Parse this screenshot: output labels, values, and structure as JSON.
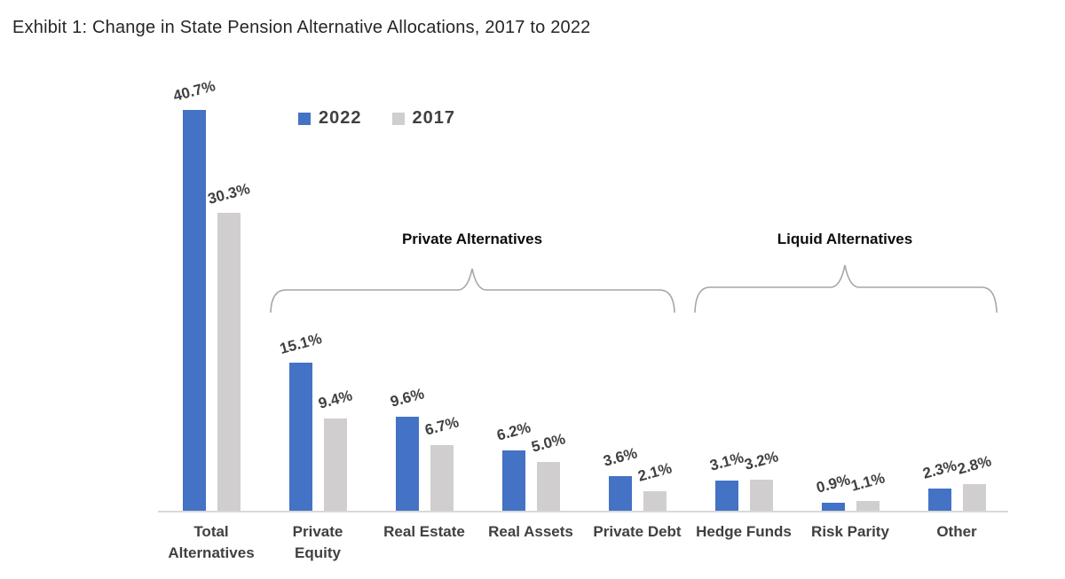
{
  "page": {
    "title": "Exhibit 1: Change in State Pension Alternative Allocations, 2017 to 2022"
  },
  "legend": {
    "items": [
      {
        "label": "2022",
        "color": "#4472C4"
      },
      {
        "label": "2017",
        "color": "#D0CECE"
      }
    ]
  },
  "chart_data": {
    "type": "bar",
    "title": "Exhibit 1: Change in State Pension Alternative Allocations, 2017 to 2022",
    "categories": [
      "Total\nAlternatives",
      "Private\nEquity",
      "Real Estate",
      "Real Assets",
      "Private Debt",
      "Hedge Funds",
      "Risk Parity",
      "Other"
    ],
    "series": [
      {
        "name": "2022",
        "color": "#4472C4",
        "values": [
          40.7,
          15.1,
          9.6,
          6.2,
          3.6,
          3.1,
          0.9,
          2.3
        ],
        "labels": [
          "40.7%",
          "15.1%",
          "9.6%",
          "6.2%",
          "3.6%",
          "3.1%",
          "0.9%",
          "2.3%"
        ]
      },
      {
        "name": "2017",
        "color": "#D0CECE",
        "values": [
          30.3,
          9.4,
          6.7,
          5.0,
          2.1,
          3.2,
          1.1,
          2.8
        ],
        "labels": [
          "30.3%",
          "9.4%",
          "6.7%",
          "5.0%",
          "2.1%",
          "3.2%",
          "1.1%",
          "2.8%"
        ]
      }
    ],
    "groups": [
      {
        "label": "Private Alternatives",
        "span": [
          "Private Equity",
          "Private Debt"
        ]
      },
      {
        "label": "Liquid Alternatives",
        "span": [
          "Hedge Funds",
          "Other"
        ]
      }
    ],
    "ylim": [
      0,
      45
    ],
    "grid": false,
    "legend_position": "top-left-inside",
    "value_label_rotation_deg": -15,
    "axis_line_color": "#D9D9D9",
    "brace_color": "#A6A6A6"
  }
}
